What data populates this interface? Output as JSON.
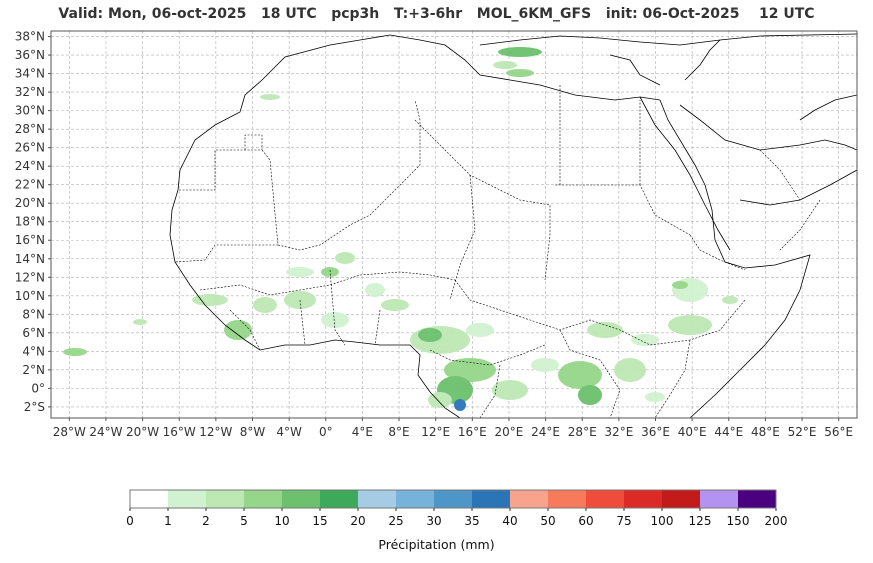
{
  "title": "Valid: Mon, 06-oct-2025   18 UTC   pcp3h   T:+3-6hr   MOL_6KM_GFS   init: 06-Oct-2025    12 UTC",
  "map": {
    "lon_range": [
      -30,
      58
    ],
    "lat_range": [
      -3.2,
      38.6
    ],
    "lon_ticks": [
      "28°W",
      "24°W",
      "20°W",
      "16°W",
      "12°W",
      "8°W",
      "4°W",
      "0°",
      "4°E",
      "8°E",
      "12°E",
      "16°E",
      "20°E",
      "24°E",
      "28°E",
      "32°E",
      "36°E",
      "40°E",
      "44°E",
      "48°E",
      "52°E",
      "56°E"
    ],
    "lat_ticks": [
      "38°N",
      "36°N",
      "34°N",
      "32°N",
      "30°N",
      "28°N",
      "26°N",
      "24°N",
      "22°N",
      "20°N",
      "18°N",
      "16°N",
      "14°N",
      "12°N",
      "10°N",
      "8°N",
      "6°N",
      "4°N",
      "2°N",
      "0°",
      "2°S"
    ],
    "grid": true,
    "coastline_color": "#000000",
    "border_color": "#000000"
  },
  "colorbar": {
    "label": "Précipitation (mm)",
    "ticks": [
      "0",
      "1",
      "2",
      "5",
      "10",
      "15",
      "20",
      "25",
      "30",
      "35",
      "40",
      "50",
      "60",
      "75",
      "100",
      "125",
      "150",
      "200"
    ],
    "colors": [
      "#ffffff",
      "#d0f2d0",
      "#bde8b4",
      "#96d68a",
      "#6cc06e",
      "#3daa5b",
      "#a5cce4",
      "#76b3db",
      "#4f96c8",
      "#2a74b7",
      "#f8a38c",
      "#f87a5c",
      "#ef4c3c",
      "#dc2a26",
      "#c31a1a",
      "#b293f0",
      "#4b007f"
    ]
  }
}
